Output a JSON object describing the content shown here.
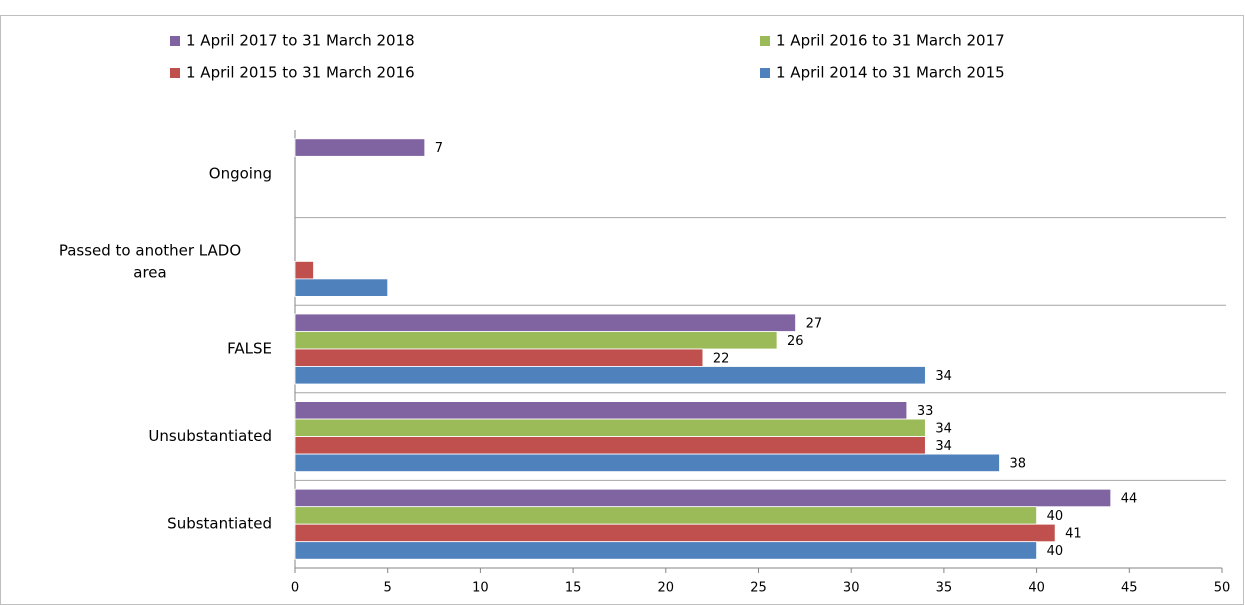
{
  "chart_data": {
    "type": "bar",
    "orientation": "horizontal",
    "categories": [
      "Ongoing",
      "Passed to another LADO area",
      "FALSE",
      "Unsubstantiated",
      "Substantiated"
    ],
    "series": [
      {
        "name": "1 April 2017 to 31 March 2018",
        "color": "#8064a2",
        "values": [
          7,
          null,
          27,
          33,
          44
        ],
        "value_labels": [
          "7",
          null,
          "27",
          "33",
          "44"
        ]
      },
      {
        "name": "1 April 2016 to 31 March 2017",
        "color": "#9bbb59",
        "values": [
          null,
          null,
          26,
          34,
          40
        ],
        "value_labels": [
          null,
          null,
          "26",
          "34",
          "40"
        ]
      },
      {
        "name": "1 April 2015 to 31 March 2016",
        "color": "#c0504d",
        "values": [
          null,
          1,
          22,
          34,
          41
        ],
        "value_labels": [
          null,
          null,
          "22",
          "34",
          "41"
        ]
      },
      {
        "name": "1 April 2014 to 31 March 2015",
        "color": "#4f81bd",
        "values": [
          null,
          5,
          34,
          38,
          40
        ],
        "value_labels": [
          null,
          null,
          "34",
          "38",
          "40"
        ]
      }
    ],
    "xlim": [
      0,
      50
    ],
    "xticks": [
      0,
      5,
      10,
      15,
      20,
      25,
      30,
      35,
      40,
      45,
      50
    ],
    "grid": true,
    "legend": "top"
  }
}
